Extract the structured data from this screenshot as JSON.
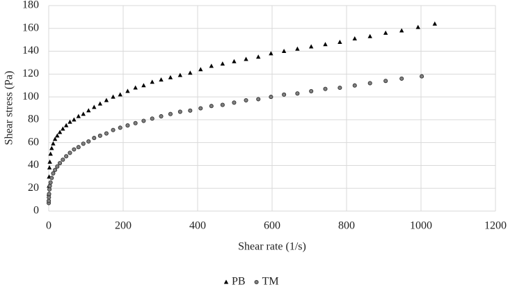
{
  "chart_data": {
    "type": "scatter",
    "x_label": "Shear rate (1/s)",
    "y_label": "Shear stress (Pa)",
    "xlim": [
      0,
      1200
    ],
    "xticks": [
      0,
      200,
      400,
      600,
      800,
      1000,
      1200
    ],
    "ylim": [
      0,
      180
    ],
    "yticks": [
      0,
      20,
      40,
      60,
      80,
      100,
      120,
      140,
      160,
      180
    ],
    "grid": true,
    "legend": "bottom",
    "series": [
      {
        "name": "PB",
        "color": "#000000",
        "marker": "triangle",
        "x": [
          0.1,
          0.2,
          0.5,
          1,
          2,
          3,
          5,
          8,
          12,
          17,
          23,
          30,
          38,
          47,
          57,
          68,
          80,
          93,
          107,
          122,
          138,
          155,
          173,
          192,
          212,
          233,
          255,
          278,
          302,
          327,
          353,
          380,
          408,
          437,
          467,
          498,
          530,
          563,
          597,
          632,
          668,
          705,
          743,
          782,
          822,
          863,
          905,
          948,
          992,
          1037
        ],
        "values": [
          10,
          15,
          22,
          30,
          38,
          43,
          50,
          55,
          59,
          63,
          66,
          69,
          72,
          75,
          78,
          80,
          83,
          85,
          88,
          91,
          94,
          97,
          100,
          102,
          105,
          108,
          110,
          113,
          115,
          117,
          119,
          121,
          124,
          127,
          129,
          131,
          133,
          135,
          138,
          140,
          142,
          144,
          146,
          148,
          151,
          153,
          156,
          158,
          161,
          164
        ]
      },
      {
        "name": "TM",
        "color": "#808080",
        "marker": "circle",
        "x": [
          0.1,
          0.2,
          0.5,
          1,
          2,
          3,
          5,
          8,
          12,
          17,
          23,
          30,
          38,
          47,
          57,
          68,
          80,
          93,
          107,
          122,
          138,
          155,
          173,
          192,
          212,
          233,
          255,
          278,
          302,
          327,
          353,
          380,
          408,
          437,
          467,
          498,
          530,
          563,
          597,
          632,
          668,
          705,
          743,
          782,
          822,
          863,
          905,
          948,
          1002
        ],
        "values": [
          7,
          9,
          12,
          15,
          19,
          22,
          25,
          29,
          33,
          36,
          39,
          42,
          45,
          48,
          51,
          54,
          56,
          59,
          61,
          64,
          66,
          68,
          71,
          73,
          75,
          77,
          79,
          81,
          83,
          85,
          87,
          88,
          90,
          92,
          93,
          95,
          97,
          98,
          100,
          102,
          103,
          105,
          107,
          108,
          110,
          112,
          114,
          116,
          118
        ]
      }
    ]
  }
}
